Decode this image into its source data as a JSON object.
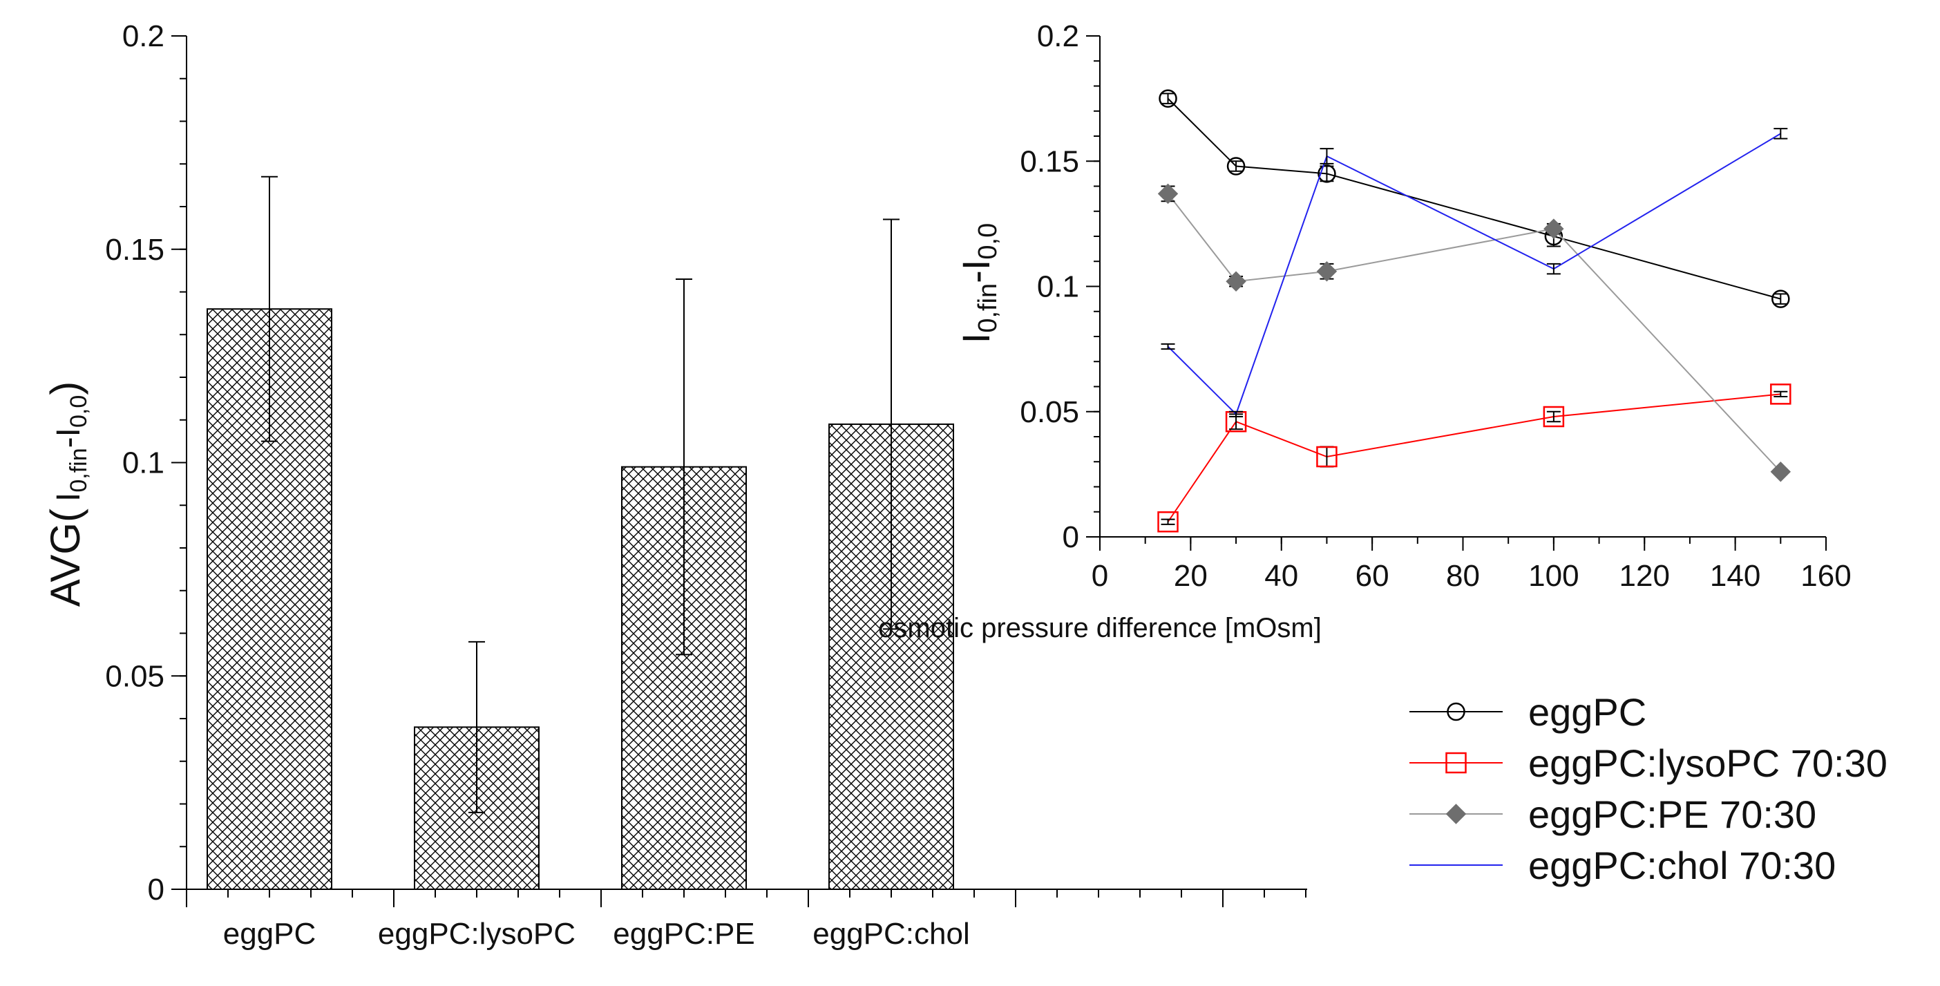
{
  "chart_data": [
    {
      "type": "bar",
      "title": "",
      "xlabel": "",
      "ylabel": {
        "prefix": "AVG(",
        "main": "I",
        "sub1": "0,fin",
        "mid": "-I",
        "sub2": "0,0",
        "suffix": ")"
      },
      "ylim": [
        0,
        0.2
      ],
      "yticks": [
        0,
        0.05,
        0.1,
        0.15,
        0.2
      ],
      "ytick_labels": [
        "0",
        "0.05",
        "0.1",
        "0.15",
        "0.2"
      ],
      "categories": [
        "eggPC",
        "eggPC:lysoPC",
        "eggPC:PE",
        "eggPC:chol"
      ],
      "values": [
        0.136,
        0.038,
        0.099,
        0.109
      ],
      "errors": [
        0.031,
        0.02,
        0.044,
        0.048
      ],
      "fill": "crosshatch",
      "grid": false
    },
    {
      "type": "line",
      "title": "",
      "xlabel": "osmotic pressure difference [mOsm]",
      "ylabel": {
        "main": "I",
        "sub1": "0,fin",
        "mid": "-I",
        "sub2": "0,0"
      },
      "xlim": [
        0,
        160
      ],
      "ylim": [
        0,
        0.2
      ],
      "xticks": [
        0,
        20,
        40,
        60,
        80,
        100,
        120,
        140,
        160
      ],
      "xtick_labels": [
        "0",
        "20",
        "40",
        "60",
        "80",
        "100",
        "120",
        "140",
        "160"
      ],
      "yticks": [
        0,
        0.05,
        0.1,
        0.15,
        0.2
      ],
      "ytick_labels": [
        "0",
        "0.05",
        "0.1",
        "0.15",
        "0.2"
      ],
      "grid": false,
      "legend_position": "bottom-right, outside",
      "series": [
        {
          "name": "eggPC",
          "color": "#000000",
          "marker": "circle-open",
          "x": [
            15,
            30,
            50,
            100,
            150
          ],
          "y": [
            0.175,
            0.148,
            0.145,
            0.12,
            0.095
          ],
          "err": [
            0.002,
            0.002,
            0.003,
            0.004,
            0.002
          ]
        },
        {
          "name": "eggPC:lysoPC 70:30",
          "color": "#ff0000",
          "marker": "square-open",
          "x": [
            15,
            30,
            50,
            100,
            150
          ],
          "y": [
            0.006,
            0.046,
            0.032,
            0.048,
            0.057
          ],
          "err": [
            0.001,
            0.003,
            0.004,
            0.002,
            0.001
          ]
        },
        {
          "name": "eggPC:PE 70:30",
          "color": "#9a9a9a",
          "marker": "diamond-filled",
          "x": [
            15,
            30,
            50,
            100,
            150
          ],
          "y": [
            0.137,
            0.102,
            0.106,
            0.123,
            0.026
          ],
          "err": [
            0.003,
            0.002,
            0.003,
            0.002,
            0.001
          ]
        },
        {
          "name": "eggPC:chol 70:30",
          "color": "#2222ee",
          "marker": "none",
          "x": [
            15,
            30,
            50,
            100,
            150
          ],
          "y": [
            0.076,
            0.049,
            0.152,
            0.107,
            0.161
          ],
          "err": [
            0.001,
            0.001,
            0.003,
            0.002,
            0.002
          ]
        }
      ]
    }
  ]
}
